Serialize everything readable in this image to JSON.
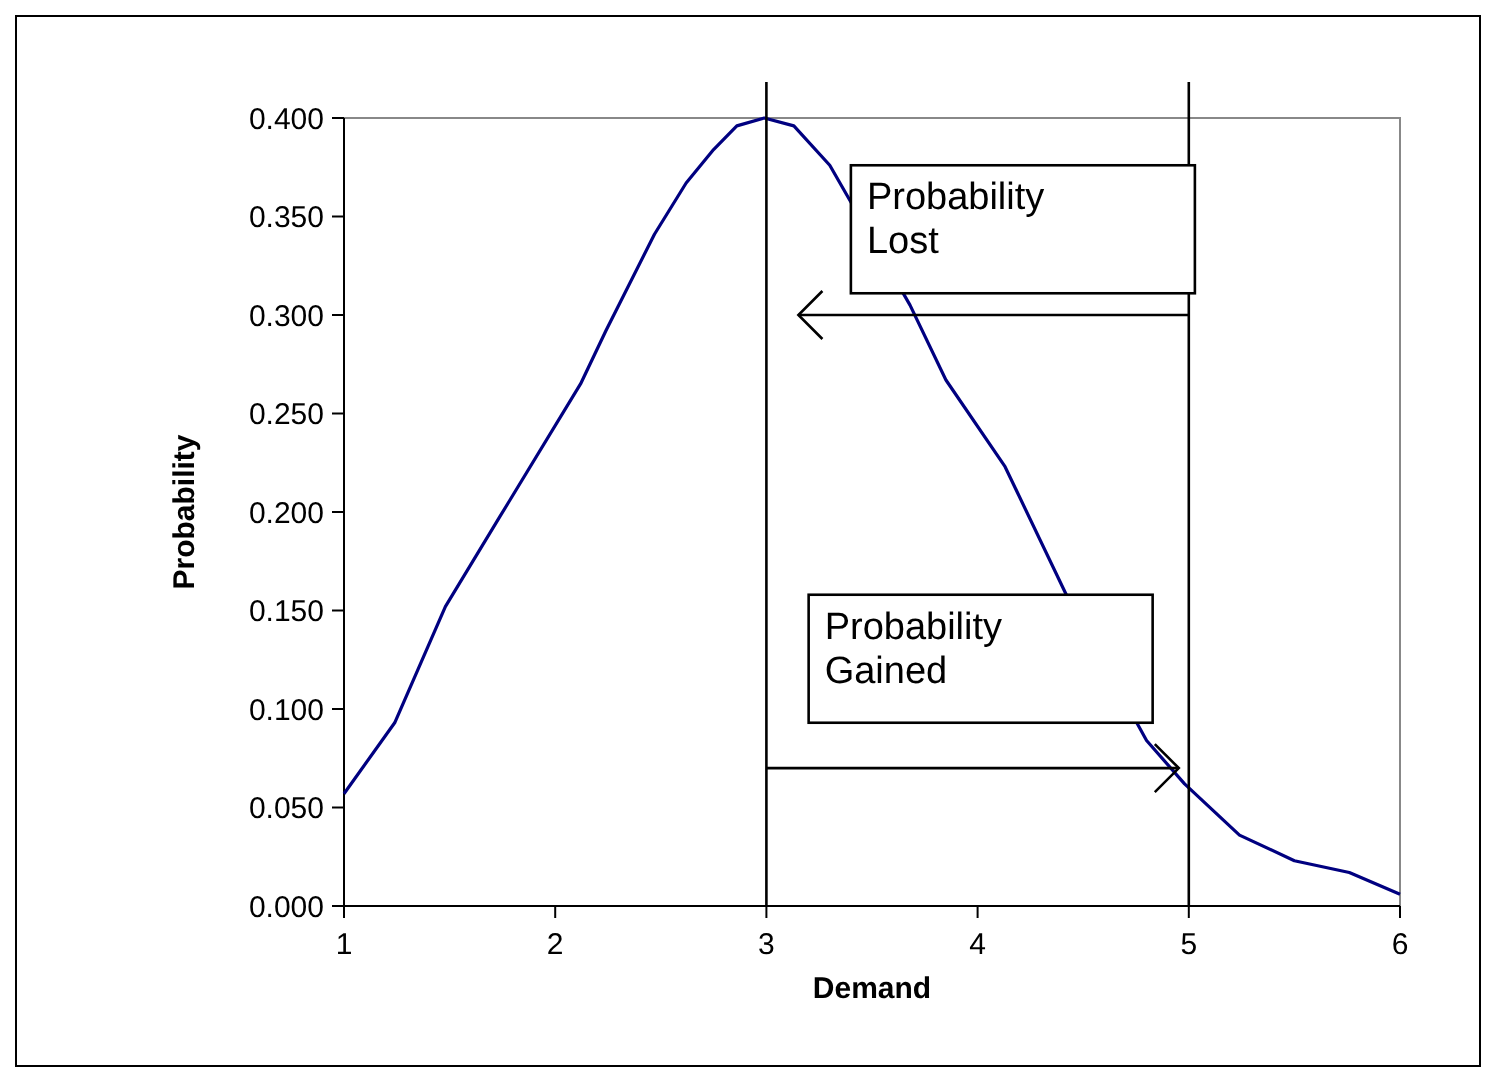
{
  "chart_data": {
    "type": "line",
    "xlabel": "Demand",
    "ylabel": "Probability",
    "x": [
      1,
      1.24,
      1.48,
      1.74,
      2.12,
      2.24,
      2.47,
      2.62,
      2.75,
      2.86,
      2.99,
      3.13,
      3.3,
      3.68,
      3.85,
      4.13,
      4.42,
      4.8,
      4.98,
      5.24,
      5.5,
      5.76,
      6
    ],
    "series": [
      {
        "color": "#000080",
        "values": [
          0.057,
          0.093,
          0.152,
          0.198,
          0.265,
          0.292,
          0.341,
          0.367,
          0.384,
          0.396,
          0.4,
          0.396,
          0.376,
          0.305,
          0.267,
          0.223,
          0.158,
          0.084,
          0.062,
          0.036,
          0.023,
          0.017,
          0.006
        ]
      }
    ],
    "xlim": [
      1,
      6
    ],
    "xticks": [
      1,
      2,
      3,
      4,
      5,
      6
    ],
    "ylim": [
      0,
      0.4
    ],
    "yticks": [
      {
        "value": 0,
        "label": "0.000"
      },
      {
        "value": 0.05,
        "label": "0.050"
      },
      {
        "value": 0.1,
        "label": "0.100"
      },
      {
        "value": 0.15,
        "label": "0.150"
      },
      {
        "value": 0.2,
        "label": "0.200"
      },
      {
        "value": 0.25,
        "label": "0.250"
      },
      {
        "value": 0.3,
        "label": "0.300"
      },
      {
        "value": 0.35,
        "label": "0.350"
      },
      {
        "value": 0.4,
        "label": "0.400"
      }
    ],
    "ref_lines": [
      {
        "axis": "x",
        "value": 3,
        "color": "#000000"
      },
      {
        "axis": "x",
        "value": 5,
        "color": "#000000"
      }
    ],
    "annotations": [
      "Probability\nLost",
      "Probability\nGained"
    ],
    "grid": false,
    "marker": "none",
    "line_style": "solid"
  }
}
